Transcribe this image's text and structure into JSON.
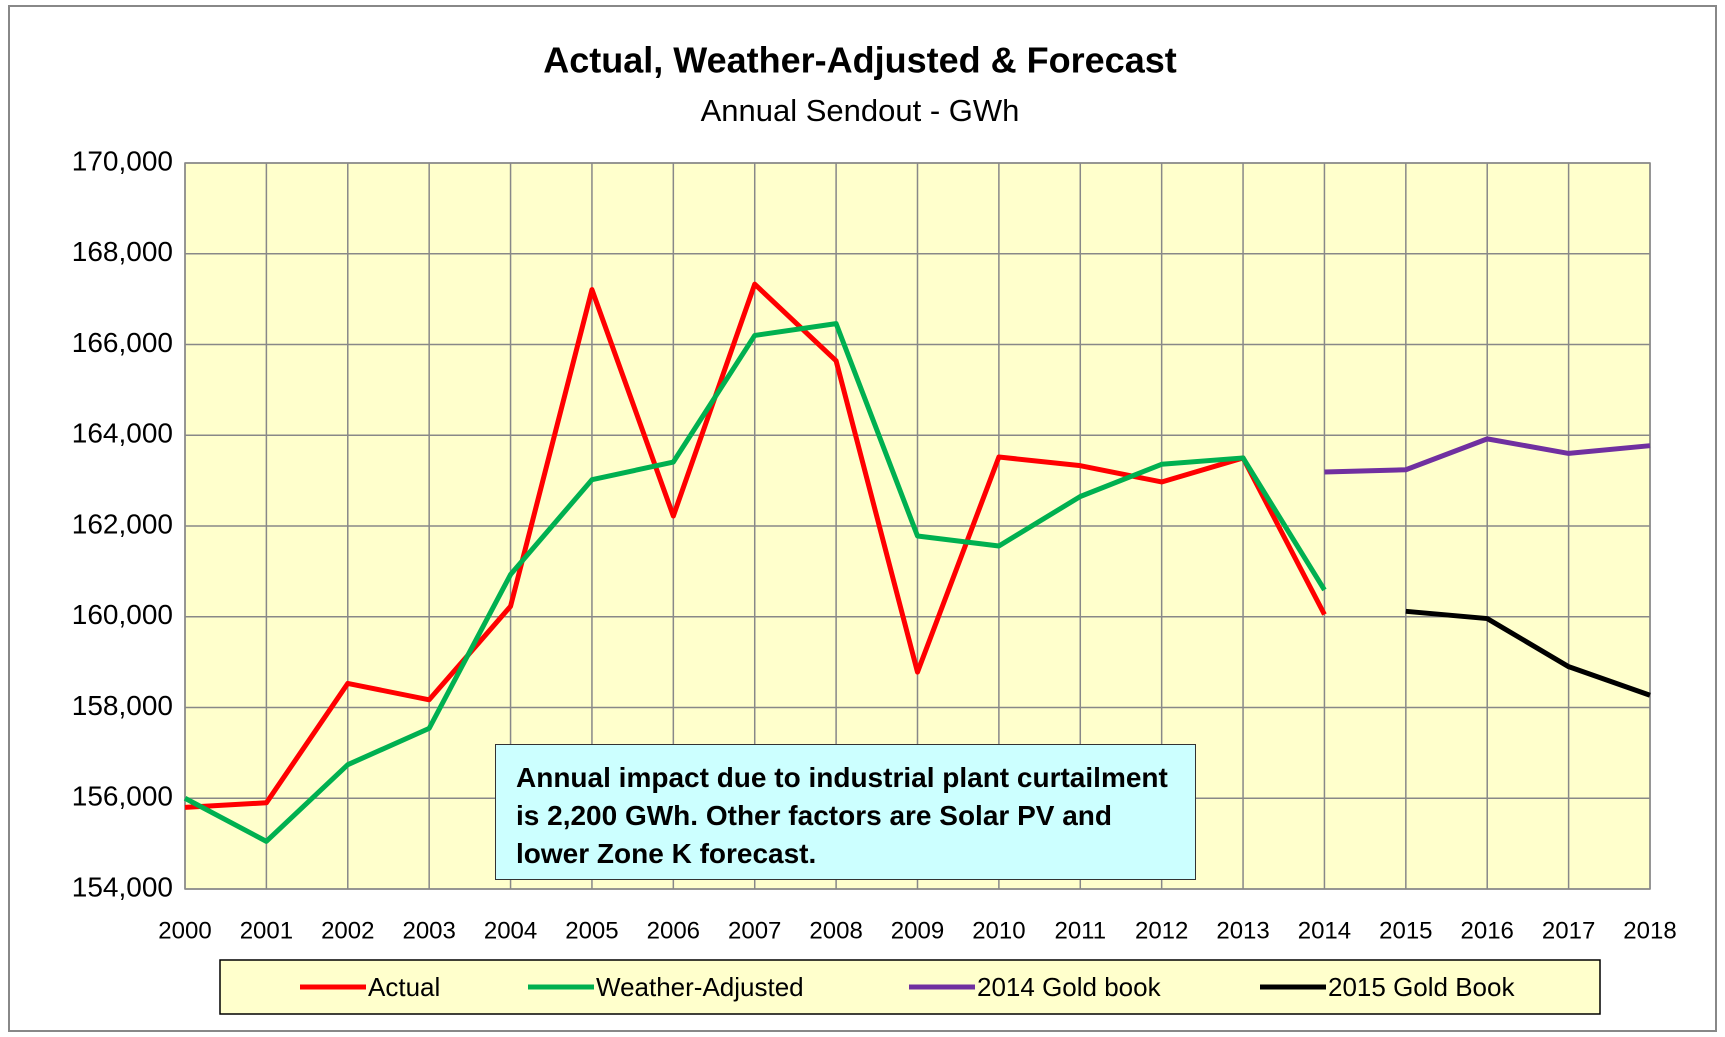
{
  "chart_data": {
    "type": "line",
    "title": "Actual, Weather-Adjusted & Forecast",
    "subtitle": "Annual Sendout - GWh",
    "annotation": "Annual impact due to industrial plant curtailment is 2,200 GWh. Other factors are Solar PV and lower Zone K forecast.",
    "categories": [
      "2000",
      "2001",
      "2002",
      "2003",
      "2004",
      "2005",
      "2006",
      "2007",
      "2008",
      "2009",
      "2010",
      "2011",
      "2012",
      "2013",
      "2014",
      "2015",
      "2016",
      "2017",
      "2018"
    ],
    "series": [
      {
        "name": "Actual",
        "color": "#ff0000",
        "values": [
          155800,
          155900,
          158530,
          158170,
          160230,
          167210,
          162220,
          167330,
          165640,
          158780,
          163520,
          163330,
          162970,
          163500,
          160050,
          null,
          null,
          null,
          null
        ]
      },
      {
        "name": "Weather-Adjusted",
        "color": "#00b050",
        "values": [
          156000,
          155050,
          156740,
          157540,
          160930,
          163020,
          163410,
          166200,
          166460,
          161780,
          161560,
          162650,
          163360,
          163500,
          160590,
          null,
          null,
          null,
          null
        ]
      },
      {
        "name": "2014 Gold book",
        "color": "#7030a0",
        "values": [
          null,
          null,
          null,
          null,
          null,
          null,
          null,
          null,
          null,
          null,
          null,
          null,
          null,
          null,
          163190,
          163240,
          163920,
          163600,
          163770
        ]
      },
      {
        "name": "2015 Gold Book",
        "color": "#000000",
        "values": [
          null,
          null,
          null,
          null,
          null,
          null,
          null,
          null,
          null,
          null,
          null,
          null,
          null,
          null,
          null,
          160120,
          159960,
          158900,
          158270
        ]
      }
    ],
    "ylim": [
      154000,
      170000
    ],
    "yticks": [
      {
        "value": 154000,
        "label": "154,000"
      },
      {
        "value": 156000,
        "label": "156,000"
      },
      {
        "value": 158000,
        "label": "158,000"
      },
      {
        "value": 160000,
        "label": "160,000"
      },
      {
        "value": 162000,
        "label": "162,000"
      },
      {
        "value": 164000,
        "label": "164,000"
      },
      {
        "value": 166000,
        "label": "166,000"
      },
      {
        "value": 168000,
        "label": "168,000"
      },
      {
        "value": 170000,
        "label": "170,000"
      }
    ],
    "grid": true,
    "plot_background": "#ffffcc",
    "legend": "bottom"
  }
}
